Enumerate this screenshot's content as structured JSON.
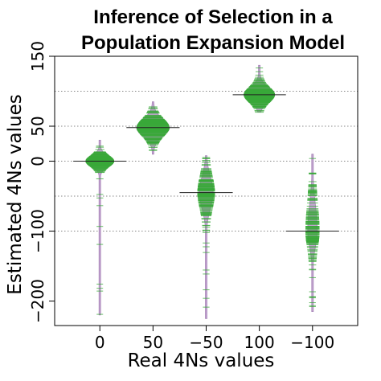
{
  "chart_data": {
    "type": "violin",
    "title_line1": "Inference of Selection in a",
    "title_line2": "Population Expansion Model",
    "xlabel": "Real 4Ns values",
    "ylabel": "Estimated 4Ns values",
    "categories": [
      "0",
      "50",
      "−50",
      "100",
      "−100"
    ],
    "real_values": [
      0,
      50,
      -50,
      100,
      -100
    ],
    "y_ticks": [
      150,
      50,
      0,
      -100,
      -200
    ],
    "y_tick_labels": [
      "150",
      "50",
      "0",
      "−100",
      "−200"
    ],
    "ylim": [
      -235,
      150
    ],
    "reference_lines": [
      100,
      50,
      0,
      -50,
      -100
    ],
    "distributions": [
      {
        "category": "0",
        "median": 0,
        "q1": -5,
        "q3": 5,
        "min": -220,
        "max": 30,
        "mode_width": 0.52
      },
      {
        "category": "50",
        "median": 48,
        "q1": 40,
        "q3": 56,
        "min": 10,
        "max": 85,
        "mode_width": 0.62
      },
      {
        "category": "−50",
        "median": -45,
        "q1": -60,
        "q3": -30,
        "min": -225,
        "max": 8,
        "mode_width": 0.26
      },
      {
        "category": "100",
        "median": 95,
        "q1": 88,
        "q3": 102,
        "min": 70,
        "max": 137,
        "mode_width": 0.58
      },
      {
        "category": "−100",
        "median": -100,
        "q1": -115,
        "q3": -75,
        "min": -215,
        "max": 10,
        "mode_width": 0.18
      }
    ],
    "colors": {
      "violin_fill": "#c3a5d1",
      "violin_stroke": "#a886b8",
      "points": "#38a838",
      "reference_line": "#888888",
      "median_line": "#222222"
    },
    "grid": false,
    "legend": "none"
  }
}
